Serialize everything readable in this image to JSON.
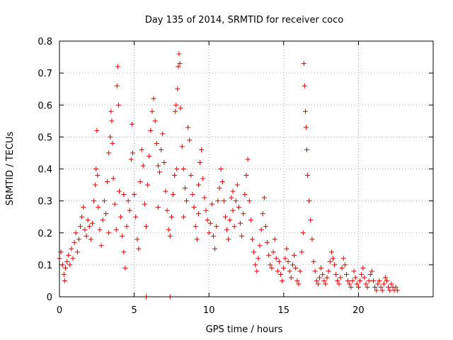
{
  "chart_data": {
    "type": "scatter",
    "title": "Day 135 of 2014, SRMTID for receiver coco",
    "xlabel": "GPS time / hours",
    "ylabel": "SRMTID / TECUs",
    "xlim": [
      0,
      25
    ],
    "ylim": [
      0,
      0.8
    ],
    "xticks": [
      0,
      5,
      10,
      15,
      20
    ],
    "yticks": [
      0,
      0.1,
      0.2,
      0.3,
      0.4,
      0.5,
      0.6,
      0.7,
      0.8
    ],
    "grid": true,
    "marker": "+",
    "color": "#e00000",
    "series": [
      {
        "name": "SRMTID",
        "points": [
          [
            0.0,
            0.12
          ],
          [
            0.1,
            0.14
          ],
          [
            0.2,
            0.1
          ],
          [
            0.3,
            0.07
          ],
          [
            0.35,
            0.05
          ],
          [
            0.4,
            0.09
          ],
          [
            0.5,
            0.11
          ],
          [
            0.6,
            0.13
          ],
          [
            0.7,
            0.1
          ],
          [
            0.8,
            0.15
          ],
          [
            0.9,
            0.12
          ],
          [
            1.0,
            0.17
          ],
          [
            1.1,
            0.2
          ],
          [
            1.2,
            0.14
          ],
          [
            1.3,
            0.18
          ],
          [
            1.4,
            0.22
          ],
          [
            1.5,
            0.25
          ],
          [
            1.6,
            0.28
          ],
          [
            1.7,
            0.21
          ],
          [
            1.8,
            0.19
          ],
          [
            1.9,
            0.24
          ],
          [
            2.0,
            0.22
          ],
          [
            2.1,
            0.18
          ],
          [
            2.2,
            0.23
          ],
          [
            2.3,
            0.3
          ],
          [
            2.4,
            0.35
          ],
          [
            2.45,
            0.4
          ],
          [
            2.5,
            0.52
          ],
          [
            2.55,
            0.38
          ],
          [
            2.6,
            0.28
          ],
          [
            2.7,
            0.21
          ],
          [
            2.8,
            0.16
          ],
          [
            2.9,
            0.24
          ],
          [
            3.0,
            0.3
          ],
          [
            3.1,
            0.26
          ],
          [
            3.2,
            0.36
          ],
          [
            3.3,
            0.45
          ],
          [
            3.4,
            0.5
          ],
          [
            3.45,
            0.58
          ],
          [
            3.5,
            0.55
          ],
          [
            3.55,
            0.48
          ],
          [
            3.6,
            0.37
          ],
          [
            3.7,
            0.29
          ],
          [
            3.8,
            0.21
          ],
          [
            3.85,
            0.66
          ],
          [
            3.9,
            0.72
          ],
          [
            3.95,
            0.6
          ],
          [
            4.0,
            0.33
          ],
          [
            4.1,
            0.25
          ],
          [
            4.2,
            0.19
          ],
          [
            4.3,
            0.14
          ],
          [
            4.4,
            0.09
          ],
          [
            4.5,
            0.22
          ],
          [
            4.6,
            0.3
          ],
          [
            4.7,
            0.27
          ],
          [
            4.8,
            0.43
          ],
          [
            4.85,
            0.54
          ],
          [
            4.9,
            0.45
          ],
          [
            5.0,
            0.32
          ],
          [
            5.1,
            0.25
          ],
          [
            5.2,
            0.18
          ],
          [
            5.3,
            0.15
          ],
          [
            5.4,
            0.36
          ],
          [
            5.5,
            0.46
          ],
          [
            5.6,
            0.41
          ],
          [
            5.7,
            0.29
          ],
          [
            5.8,
            0.22
          ],
          [
            5.9,
            0.35
          ],
          [
            6.0,
            0.44
          ],
          [
            6.1,
            0.52
          ],
          [
            6.2,
            0.58
          ],
          [
            6.3,
            0.62
          ],
          [
            6.4,
            0.55
          ],
          [
            6.5,
            0.48
          ],
          [
            6.6,
            0.41
          ],
          [
            6.7,
            0.39
          ],
          [
            6.8,
            0.46
          ],
          [
            6.9,
            0.51
          ],
          [
            7.0,
            0.42
          ],
          [
            7.1,
            0.33
          ],
          [
            7.2,
            0.27
          ],
          [
            7.3,
            0.21
          ],
          [
            7.4,
            0.19
          ],
          [
            7.5,
            0.25
          ],
          [
            7.6,
            0.32
          ],
          [
            7.7,
            0.38
          ],
          [
            7.75,
            0.58
          ],
          [
            7.8,
            0.6
          ],
          [
            7.85,
            0.4
          ],
          [
            7.9,
            0.65
          ],
          [
            7.95,
            0.72
          ],
          [
            8.0,
            0.76
          ],
          [
            8.05,
            0.73
          ],
          [
            8.1,
            0.59
          ],
          [
            8.2,
            0.47
          ],
          [
            8.3,
            0.4
          ],
          [
            8.4,
            0.34
          ],
          [
            8.5,
            0.3
          ],
          [
            8.6,
            0.53
          ],
          [
            8.7,
            0.49
          ],
          [
            8.8,
            0.38
          ],
          [
            8.9,
            0.32
          ],
          [
            9.0,
            0.28
          ],
          [
            9.1,
            0.22
          ],
          [
            9.2,
            0.18
          ],
          [
            9.3,
            0.26
          ],
          [
            9.4,
            0.42
          ],
          [
            9.5,
            0.46
          ],
          [
            9.6,
            0.37
          ],
          [
            9.7,
            0.31
          ],
          [
            9.8,
            0.27
          ],
          [
            9.9,
            0.24
          ],
          [
            10.0,
            0.2
          ],
          [
            10.1,
            0.23
          ],
          [
            10.2,
            0.29
          ],
          [
            10.3,
            0.19
          ],
          [
            10.4,
            0.15
          ],
          [
            10.5,
            0.22
          ],
          [
            10.6,
            0.3
          ],
          [
            10.7,
            0.34
          ],
          [
            10.8,
            0.4
          ],
          [
            10.9,
            0.36
          ],
          [
            11.0,
            0.3
          ],
          [
            11.1,
            0.25
          ],
          [
            11.2,
            0.21
          ],
          [
            11.3,
            0.18
          ],
          [
            11.4,
            0.24
          ],
          [
            11.5,
            0.31
          ],
          [
            11.6,
            0.27
          ],
          [
            11.7,
            0.22
          ],
          [
            11.8,
            0.3
          ],
          [
            11.9,
            0.35
          ],
          [
            12.0,
            0.28
          ],
          [
            12.1,
            0.23
          ],
          [
            12.2,
            0.19
          ],
          [
            12.3,
            0.26
          ],
          [
            12.4,
            0.32
          ],
          [
            12.5,
            0.38
          ],
          [
            12.6,
            0.43
          ],
          [
            12.7,
            0.3
          ],
          [
            12.8,
            0.24
          ],
          [
            12.9,
            0.18
          ],
          [
            13.0,
            0.14
          ],
          [
            13.1,
            0.1
          ],
          [
            13.2,
            0.08
          ],
          [
            13.3,
            0.12
          ],
          [
            13.4,
            0.16
          ],
          [
            13.5,
            0.21
          ],
          [
            13.6,
            0.26
          ],
          [
            13.7,
            0.31
          ],
          [
            13.8,
            0.22
          ],
          [
            13.9,
            0.17
          ],
          [
            14.0,
            0.13
          ],
          [
            14.1,
            0.1
          ],
          [
            14.2,
            0.09
          ],
          [
            14.3,
            0.14
          ],
          [
            14.4,
            0.18
          ],
          [
            14.5,
            0.12
          ],
          [
            14.6,
            0.08
          ],
          [
            14.7,
            0.11
          ],
          [
            14.8,
            0.07
          ],
          [
            14.9,
            0.05
          ],
          [
            15.0,
            0.09
          ],
          [
            15.1,
            0.12
          ],
          [
            15.2,
            0.15
          ],
          [
            15.3,
            0.11
          ],
          [
            15.4,
            0.08
          ],
          [
            15.5,
            0.06
          ],
          [
            15.6,
            0.1
          ],
          [
            15.7,
            0.13
          ],
          [
            15.8,
            0.09
          ],
          [
            15.9,
            0.05
          ],
          [
            16.0,
            0.04
          ],
          [
            16.1,
            0.08
          ],
          [
            16.2,
            0.14
          ],
          [
            16.3,
            0.2
          ],
          [
            16.35,
            0.73
          ],
          [
            16.4,
            0.66
          ],
          [
            16.45,
            0.58
          ],
          [
            16.5,
            0.53
          ],
          [
            16.55,
            0.46
          ],
          [
            16.6,
            0.38
          ],
          [
            16.7,
            0.3
          ],
          [
            16.8,
            0.24
          ],
          [
            16.9,
            0.18
          ],
          [
            17.0,
            0.11
          ],
          [
            17.1,
            0.08
          ],
          [
            17.2,
            0.05
          ],
          [
            17.3,
            0.04
          ],
          [
            17.4,
            0.06
          ],
          [
            17.5,
            0.09
          ],
          [
            17.6,
            0.07
          ],
          [
            17.7,
            0.05
          ],
          [
            17.8,
            0.04
          ],
          [
            17.9,
            0.06
          ],
          [
            18.0,
            0.08
          ],
          [
            18.1,
            0.11
          ],
          [
            18.2,
            0.14
          ],
          [
            18.3,
            0.12
          ],
          [
            18.4,
            0.1
          ],
          [
            18.5,
            0.07
          ],
          [
            18.6,
            0.05
          ],
          [
            18.7,
            0.04
          ],
          [
            18.8,
            0.06
          ],
          [
            18.9,
            0.09
          ],
          [
            19.0,
            0.12
          ],
          [
            19.1,
            0.1
          ],
          [
            19.2,
            0.07
          ],
          [
            19.3,
            0.05
          ],
          [
            19.4,
            0.04
          ],
          [
            19.5,
            0.03
          ],
          [
            19.6,
            0.05
          ],
          [
            19.7,
            0.08
          ],
          [
            19.8,
            0.06
          ],
          [
            19.9,
            0.04
          ],
          [
            20.0,
            0.03
          ],
          [
            20.1,
            0.05
          ],
          [
            20.2,
            0.07
          ],
          [
            20.3,
            0.09
          ],
          [
            20.4,
            0.06
          ],
          [
            20.5,
            0.04
          ],
          [
            20.6,
            0.03
          ],
          [
            20.7,
            0.05
          ],
          [
            20.8,
            0.07
          ],
          [
            20.9,
            0.08
          ],
          [
            21.0,
            0.05
          ],
          [
            21.1,
            0.03
          ],
          [
            21.2,
            0.02
          ],
          [
            21.3,
            0.04
          ],
          [
            21.4,
            0.05
          ],
          [
            21.5,
            0.03
          ],
          [
            21.6,
            0.02
          ],
          [
            21.7,
            0.04
          ],
          [
            21.8,
            0.06
          ],
          [
            21.9,
            0.05
          ],
          [
            22.0,
            0.03
          ],
          [
            22.1,
            0.02
          ],
          [
            22.2,
            0.04
          ],
          [
            22.3,
            0.03
          ],
          [
            22.4,
            0.02
          ],
          [
            22.5,
            0.03
          ],
          [
            22.6,
            0.02
          ],
          [
            5.8,
            0.0
          ],
          [
            7.4,
            0.0
          ],
          [
            3.3,
            0.2
          ],
          [
            6.6,
            0.28
          ],
          [
            9.3,
            0.35
          ],
          [
            11.6,
            0.33
          ],
          [
            4.3,
            0.32
          ],
          [
            8.3,
            0.25
          ]
        ]
      }
    ]
  }
}
